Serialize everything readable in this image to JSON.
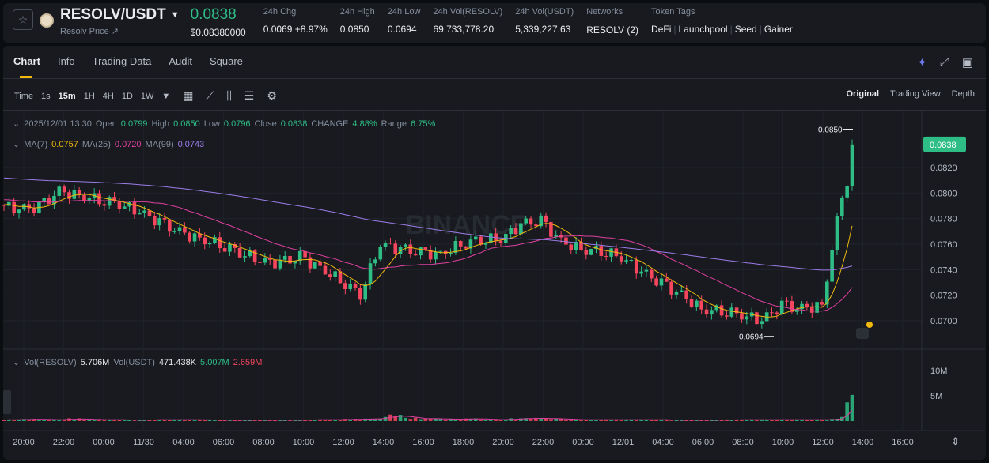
{
  "header": {
    "pair": "RESOLV/USDT",
    "sub": "Resolv Price ↗",
    "price": "0.0838",
    "usd_price": "$0.08380000",
    "stats": [
      {
        "label": "24h Chg",
        "value": "0.0069 +8.97%"
      },
      {
        "label": "24h High",
        "value": "0.0850"
      },
      {
        "label": "24h Low",
        "value": "0.0694"
      },
      {
        "label": "24h Vol(RESOLV)",
        "value": "69,733,778.20"
      },
      {
        "label": "24h Vol(USDT)",
        "value": "5,339,227.63"
      },
      {
        "label": "Networks",
        "value": "RESOLV (2)"
      }
    ],
    "tags_label": "Token Tags",
    "tags": [
      "DeFi",
      "Launchpool",
      "Seed",
      "Gainer"
    ]
  },
  "tabs": [
    "Chart",
    "Info",
    "Trading Data",
    "Audit",
    "Square"
  ],
  "intervals": [
    "Time",
    "1s",
    "15m",
    "1H",
    "4H",
    "1D",
    "1W"
  ],
  "views": [
    "Original",
    "Trading View",
    "Depth"
  ],
  "legend": {
    "date": "2025/12/01 13:30",
    "open_l": "Open",
    "open": "0.0799",
    "high_l": "High",
    "high": "0.0850",
    "low_l": "Low",
    "low": "0.0796",
    "close_l": "Close",
    "close": "0.0838",
    "chg_l": "CHANGE",
    "chg": "4.88%",
    "range_l": "Range",
    "range": "6.75%",
    "ma7_l": "MA(7)",
    "ma7": "0.0757",
    "ma25_l": "MA(25)",
    "ma25": "0.0720",
    "ma99_l": "MA(99)",
    "ma99": "0.0743",
    "vol_l": "Vol(RESOLV)",
    "vol": "5.706M",
    "volu_l": "Vol(USDT)",
    "volu": "471.438K",
    "v1": "5.007M",
    "v2": "2.659M"
  },
  "colors": {
    "up": "#2ebd85",
    "down": "#f6465d",
    "ma7": "#f0b90b",
    "ma25": "#e040a0",
    "ma99": "#9c7ce8"
  },
  "chart_data": {
    "type": "candlestick",
    "interval": "15m",
    "hourly_close": [
      0.0791,
      0.0787,
      0.0789,
      0.0801,
      0.0798,
      0.0795,
      0.0792,
      0.0785,
      0.0777,
      0.0769,
      0.0764,
      0.076,
      0.0754,
      0.0747,
      0.0745,
      0.075,
      0.0741,
      0.0732,
      0.0721,
      0.076,
      0.0756,
      0.0753,
      0.0752,
      0.076,
      0.0764,
      0.0764,
      0.0775,
      0.0778,
      0.0762,
      0.0756,
      0.0755,
      0.075,
      0.0738,
      0.0729,
      0.072,
      0.0709,
      0.0708,
      0.0705,
      0.07,
      0.0712,
      0.0709,
      0.0712,
      0.08,
      0.0838
    ],
    "hourly_volume_m": [
      0.3,
      0.4,
      0.3,
      0.5,
      0.3,
      0.3,
      0.2,
      0.3,
      0.3,
      0.3,
      0.2,
      0.2,
      0.2,
      0.2,
      0.2,
      0.3,
      0.3,
      0.4,
      0.5,
      1.2,
      0.6,
      0.5,
      0.4,
      0.5,
      0.3,
      0.5,
      0.6,
      0.5,
      0.3,
      0.3,
      0.3,
      0.3,
      0.3,
      0.2,
      0.2,
      0.2,
      0.3,
      0.3,
      0.3,
      0.3,
      0.3,
      0.4,
      7,
      11
    ],
    "price_ticks": [
      "0.0820",
      "0.0800",
      "0.0780",
      "0.0760",
      "0.0740",
      "0.0720",
      "0.0700"
    ],
    "ylim": [
      0.0688,
      0.0858
    ],
    "vol_ticks": [
      "10M",
      "5M"
    ],
    "time_ticks": [
      "20:00",
      "22:00",
      "00:00",
      "11/30",
      "04:00",
      "06:00",
      "08:00",
      "10:00",
      "12:00",
      "14:00",
      "16:00",
      "18:00",
      "20:00",
      "22:00",
      "00:00",
      "12/01",
      "04:00",
      "06:00",
      "08:00",
      "10:00",
      "12:00",
      "14:00",
      "16:00"
    ],
    "high_label": "0.0850",
    "low_label": "0.0694",
    "last_price": "0.0838",
    "watermark": "BINANCE"
  }
}
